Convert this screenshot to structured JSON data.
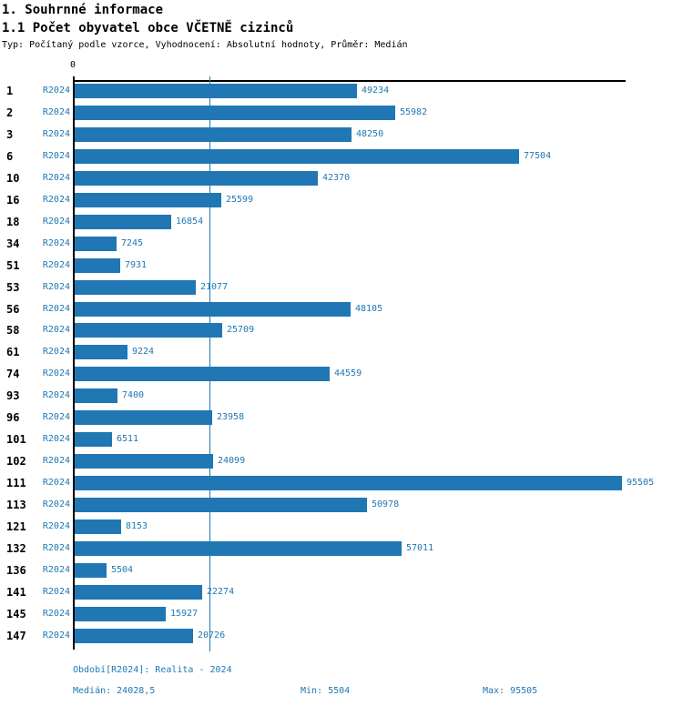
{
  "header": {
    "title": "1. Souhrnné informace",
    "subtitle": "1.1 Počet obyvatel obce VČETNĚ cizinců",
    "meta": "Typ: Počítaný podle vzorce, Vyhodnocení: Absolutní hodnoty, Průměr: Medián"
  },
  "chart_data": {
    "type": "bar",
    "orientation": "horizontal",
    "title": "1.1 Počet obyvatel obce VČETNĚ cizinců",
    "axis_zero_label": "0",
    "period_label": "R2024",
    "categories": [
      "1",
      "2",
      "3",
      "6",
      "10",
      "16",
      "18",
      "34",
      "51",
      "53",
      "56",
      "58",
      "61",
      "74",
      "93",
      "96",
      "101",
      "102",
      "111",
      "113",
      "121",
      "132",
      "136",
      "141",
      "145",
      "147"
    ],
    "values": [
      49234,
      55982,
      48250,
      77504,
      42370,
      25599,
      16854,
      7245,
      7931,
      21077,
      48105,
      25709,
      9224,
      44559,
      7400,
      23958,
      6511,
      24099,
      95505,
      50978,
      8153,
      57011,
      5504,
      22274,
      15927,
      20726
    ],
    "median": 24028.5,
    "xlim": [
      0,
      96140
    ],
    "grid": false,
    "bar_color": "#2077b4",
    "text_color": "#1f77b4",
    "median_line_color": "#2077b4"
  },
  "footer": {
    "period": "Období[R2024]: Realita - 2024",
    "median": "Medián: 24028,5",
    "min": "Min: 5504",
    "max": "Max: 95505"
  }
}
